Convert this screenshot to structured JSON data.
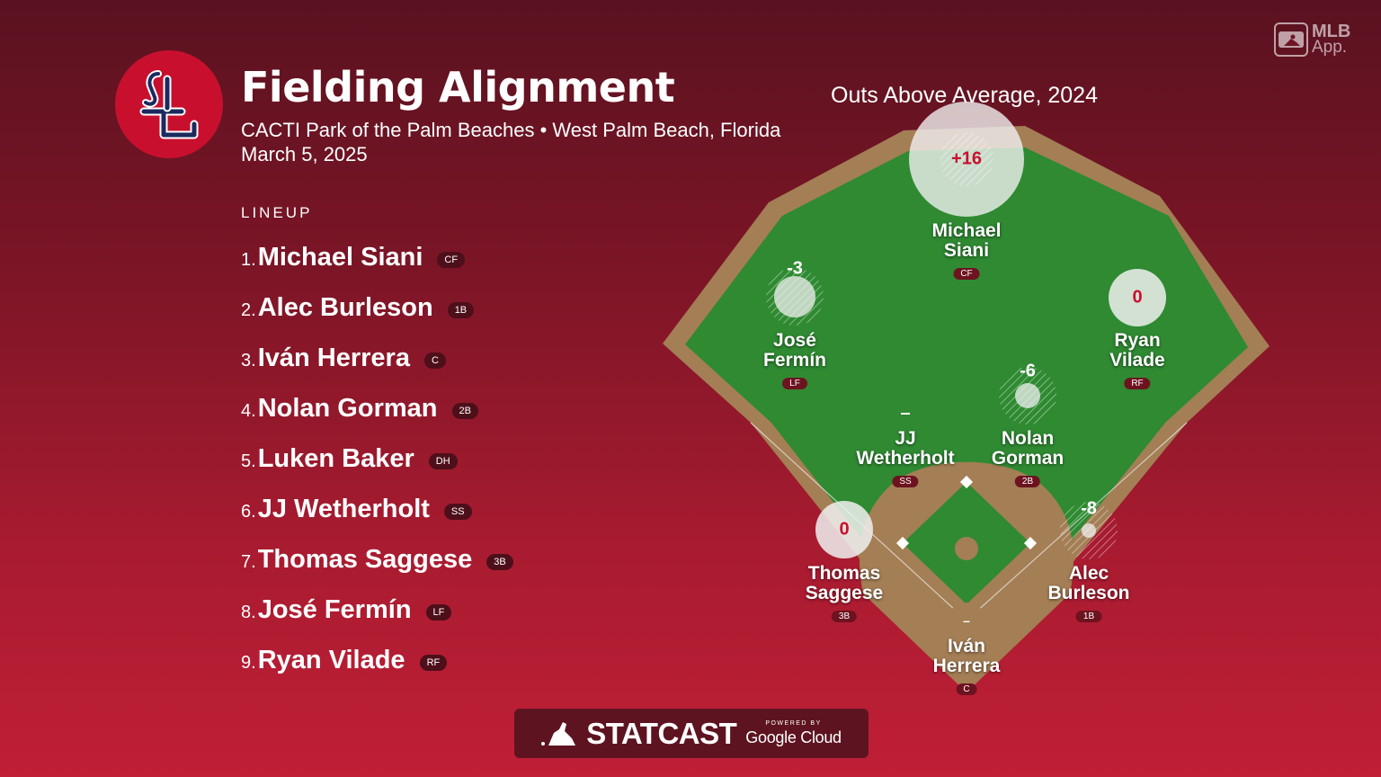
{
  "header": {
    "title": "Fielding Alignment",
    "venue": "CACTI Park of the Palm Beaches • West Palm Beach, Florida",
    "date": "March 5, 2025"
  },
  "mlb_app": {
    "line1": "MLB",
    "line2": "App."
  },
  "field_title": "Outs Above Average, 2024",
  "lineup": {
    "header": "LINEUP",
    "players": [
      {
        "num": "1.",
        "name": "Michael Siani",
        "pos": "CF"
      },
      {
        "num": "2.",
        "name": "Alec Burleson",
        "pos": "1B"
      },
      {
        "num": "3.",
        "name": "Iván Herrera",
        "pos": "C"
      },
      {
        "num": "4.",
        "name": "Nolan Gorman",
        "pos": "2B"
      },
      {
        "num": "5.",
        "name": "Luken Baker",
        "pos": "DH"
      },
      {
        "num": "6.",
        "name": "JJ Wetherholt",
        "pos": "SS"
      },
      {
        "num": "7.",
        "name": "Thomas Saggese",
        "pos": "3B"
      },
      {
        "num": "8.",
        "name": "José Fermín",
        "pos": "LF"
      },
      {
        "num": "9.",
        "name": "Ryan Vilade",
        "pos": "RF"
      }
    ]
  },
  "fielders": {
    "cf": {
      "first": "Michael",
      "last": "Siani",
      "pos": "CF",
      "oaa": "+16",
      "oaa_num": 16
    },
    "lf": {
      "first": "José",
      "last": "Fermín",
      "pos": "LF",
      "oaa": "-3",
      "oaa_num": -3
    },
    "rf": {
      "first": "Ryan",
      "last": "Vilade",
      "pos": "RF",
      "oaa": "0",
      "oaa_num": 0
    },
    "ss": {
      "first": "JJ",
      "last": "Wetherholt",
      "pos": "SS",
      "oaa": "–"
    },
    "2b": {
      "first": "Nolan",
      "last": "Gorman",
      "pos": "2B",
      "oaa": "-6",
      "oaa_num": -6
    },
    "3b": {
      "first": "Thomas",
      "last": "Saggese",
      "pos": "3B",
      "oaa": "0",
      "oaa_num": 0
    },
    "1b": {
      "first": "Alec",
      "last": "Burleson",
      "pos": "1B",
      "oaa": "-8",
      "oaa_num": -8
    },
    "c": {
      "first": "Iván",
      "last": "Herrera",
      "pos": "C",
      "oaa": "–"
    }
  },
  "footer": {
    "statcast": "STATCAST",
    "powered_by": "POWERED BY",
    "google_cloud": "Google Cloud"
  },
  "colors": {
    "grass": "#2f8a32",
    "dirt": "#a47e55",
    "team_red": "#c8102e",
    "oaa_circle": "#f0f0f0"
  }
}
